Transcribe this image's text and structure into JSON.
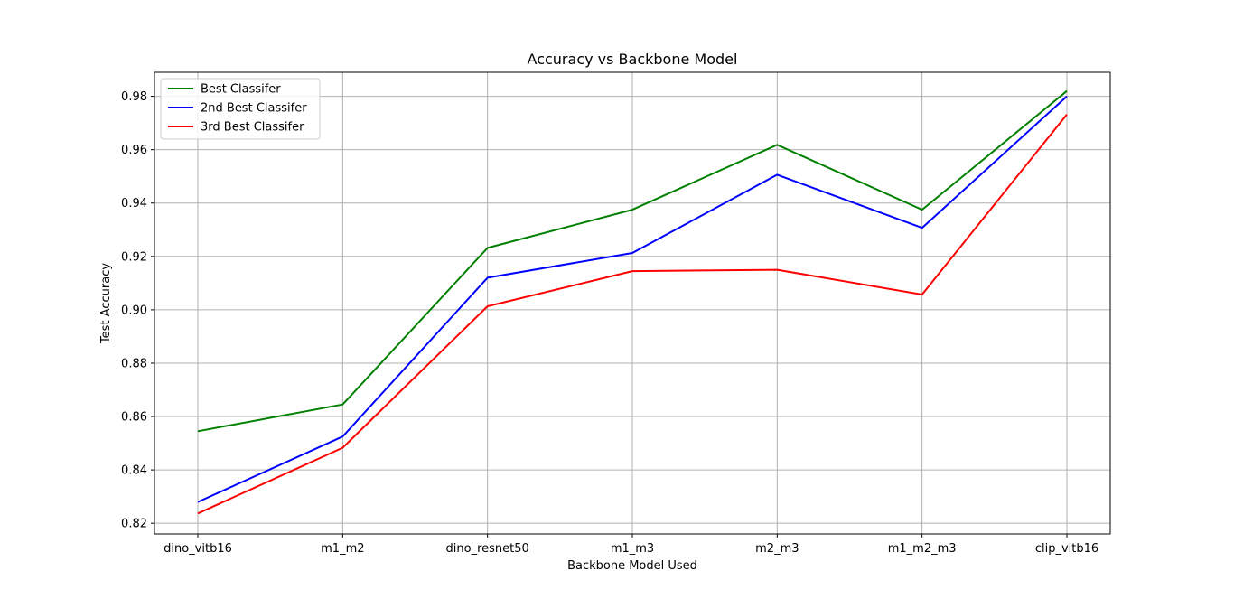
{
  "chart_data": {
    "type": "line",
    "title": "Accuracy vs Backbone Model",
    "xlabel": "Backbone Model Used",
    "ylabel": "Test Accuracy",
    "categories": [
      "dino_vitb16",
      "m1_m2",
      "dino_resnet50",
      "m1_m3",
      "m2_m3",
      "m1_m2_m3",
      "clip_vitb16"
    ],
    "ylim": [
      0.816,
      0.989
    ],
    "yticks": [
      "0.82",
      "0.84",
      "0.86",
      "0.88",
      "0.90",
      "0.92",
      "0.94",
      "0.96",
      "0.98"
    ],
    "grid": true,
    "legend_position": "top-left",
    "series": [
      {
        "name": "Best Classifer",
        "color": "#008000",
        "values": [
          0.8545,
          0.8645,
          0.9232,
          0.9375,
          0.9618,
          0.9375,
          0.982
        ]
      },
      {
        "name": "2nd Best Classifer",
        "color": "#0000ff",
        "values": [
          0.828,
          0.8525,
          0.912,
          0.9213,
          0.9506,
          0.9307,
          0.98
        ]
      },
      {
        "name": "3rd Best Classifer",
        "color": "#ff0000",
        "values": [
          0.8237,
          0.8483,
          0.9013,
          0.9145,
          0.915,
          0.9057,
          0.9732
        ]
      }
    ]
  }
}
